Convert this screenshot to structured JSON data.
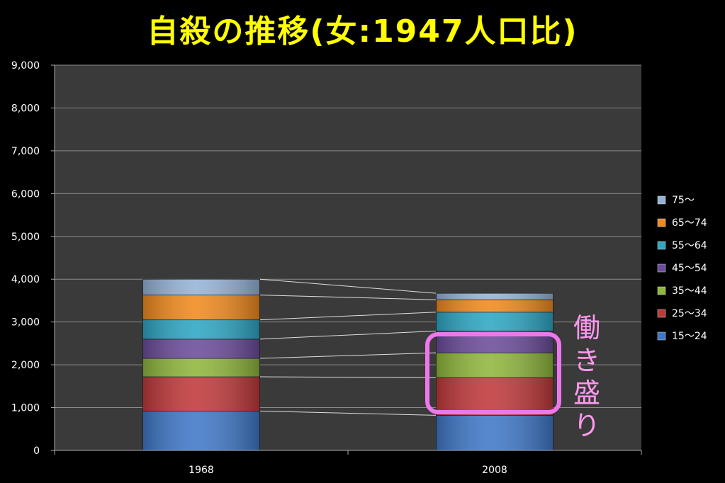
{
  "title": "自殺の推移(女:1947人口比)",
  "annotation": "働き盛り",
  "chart_data": {
    "type": "bar",
    "stacked": true,
    "categories": [
      "1968",
      "2008"
    ],
    "y_ticks": [
      "0",
      "1,000",
      "2,000",
      "3,000",
      "4,000",
      "5,000",
      "6,000",
      "7,000",
      "8,000",
      "9,000"
    ],
    "ylim": [
      0,
      9000
    ],
    "grid": true,
    "legend_position": "right",
    "series": [
      {
        "name": "15〜24",
        "values": [
          920,
          820
        ],
        "color": "#3f78c8"
      },
      {
        "name": "25〜34",
        "values": [
          800,
          880
        ],
        "color": "#c0393b"
      },
      {
        "name": "35〜44",
        "values": [
          430,
          580
        ],
        "color": "#8fb63c"
      },
      {
        "name": "45〜54",
        "values": [
          450,
          510
        ],
        "color": "#6b4c9a"
      },
      {
        "name": "55〜64",
        "values": [
          450,
          440
        ],
        "color": "#2ea6c4"
      },
      {
        "name": "65〜74",
        "values": [
          580,
          290
        ],
        "color": "#f08a1e"
      },
      {
        "name": "75〜",
        "values": [
          370,
          150
        ],
        "color": "#95b3d7"
      }
    ]
  }
}
